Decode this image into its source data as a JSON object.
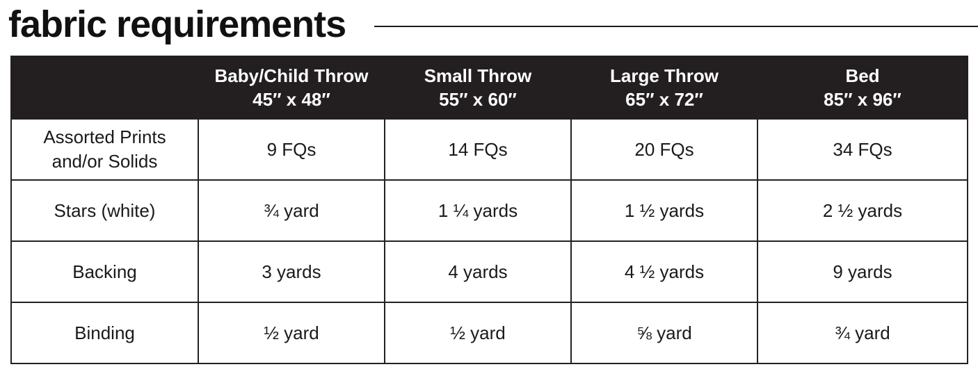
{
  "title": "fabric requirements",
  "table": {
    "columns": [
      {
        "name": "",
        "size": ""
      },
      {
        "name": "Baby/Child Throw",
        "size": "45″ x 48″"
      },
      {
        "name": "Small Throw",
        "size": "55″ x 60″"
      },
      {
        "name": "Large Throw",
        "size": "65″ x 72″"
      },
      {
        "name": "Bed",
        "size": "85″ x 96″"
      }
    ],
    "rows": [
      {
        "label_line1": "Assorted Prints",
        "label_line2": "and/or Solids",
        "values": [
          "9 FQs",
          "14 FQs",
          "20 FQs",
          "34 FQs"
        ]
      },
      {
        "label_line1": "Stars (white)",
        "label_line2": "",
        "values": [
          "¾ yard",
          "1 ¼ yards",
          "1 ½ yards",
          "2 ½ yards"
        ]
      },
      {
        "label_line1": "Backing",
        "label_line2": "",
        "values": [
          "3 yards",
          "4 yards",
          "4 ½ yards",
          "9 yards"
        ]
      },
      {
        "label_line1": "Binding",
        "label_line2": "",
        "values": [
          "½ yard",
          "½ yard",
          "⅝ yard",
          "¾ yard"
        ]
      }
    ]
  },
  "colors": {
    "header_background": "#231f20",
    "header_text": "#ffffff",
    "border": "#222222",
    "text": "#1a1a1a"
  }
}
